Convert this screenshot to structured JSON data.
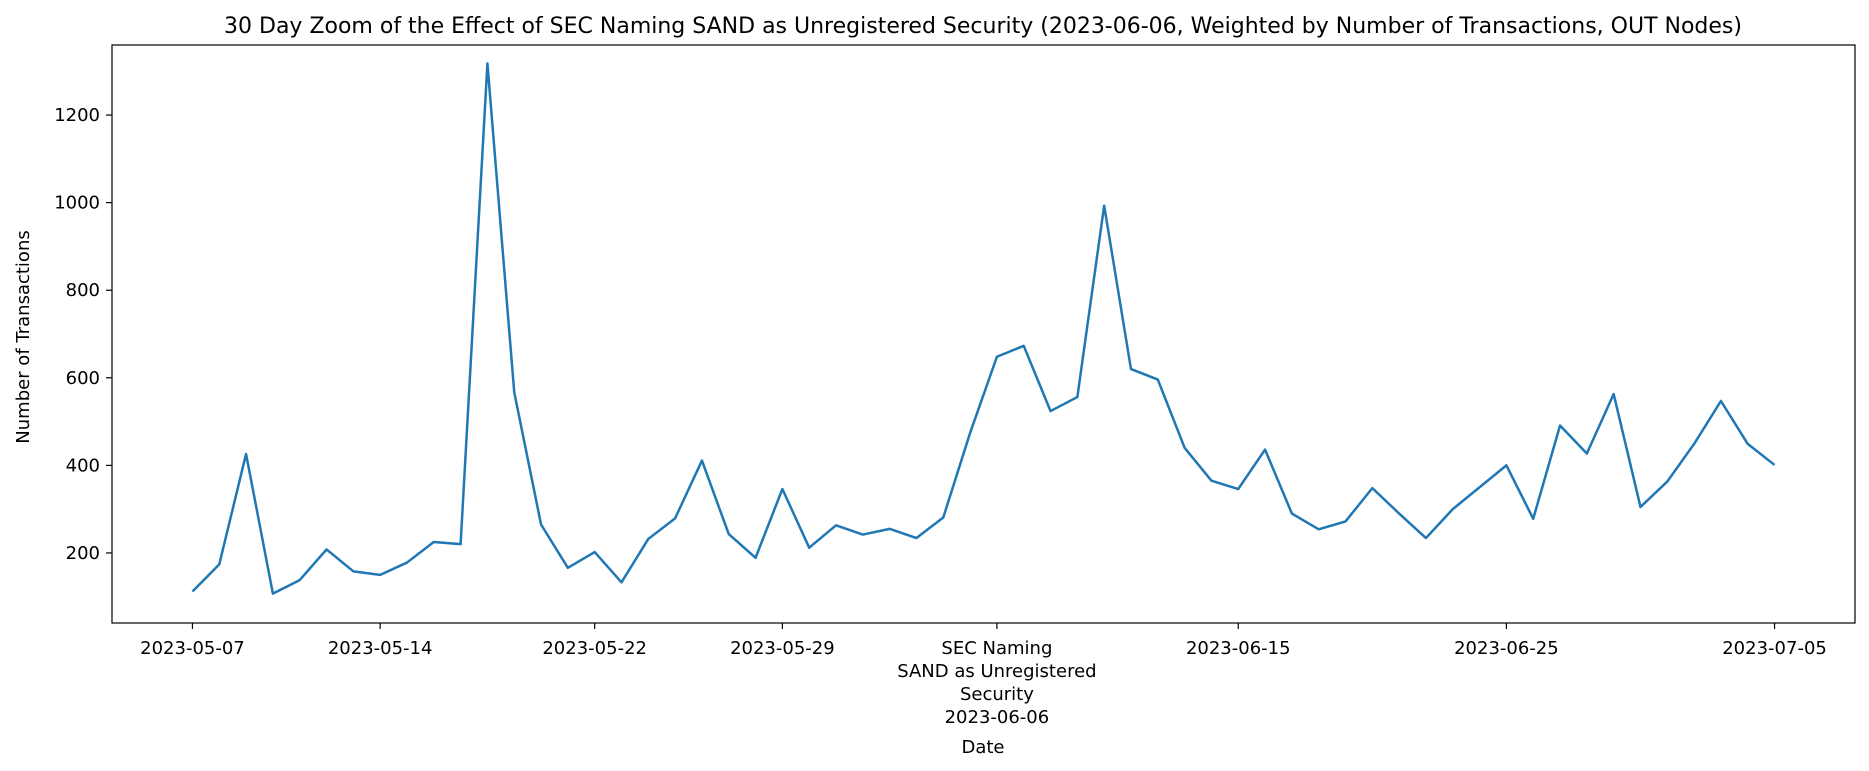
{
  "chart_data": {
    "type": "line",
    "title": "30 Day Zoom of the Effect of SEC Naming SAND as Unregistered Security (2023-06-06, Weighted by Number of Transactions, OUT Nodes)",
    "xlabel": "Date",
    "ylabel": "Number of Transactions",
    "grid": false,
    "legend": "none",
    "line_color": "#1f77b4",
    "xlim": [
      "2023-05-04",
      "2023-07-08"
    ],
    "ylim": [
      40,
      1360
    ],
    "y_ticks": [
      200,
      400,
      600,
      800,
      1000,
      1200
    ],
    "x_ticks": [
      {
        "date": "2023-05-07",
        "lines": [
          "2023-05-07"
        ]
      },
      {
        "date": "2023-05-14",
        "lines": [
          "2023-05-14"
        ]
      },
      {
        "date": "2023-05-22",
        "lines": [
          "2023-05-22"
        ]
      },
      {
        "date": "2023-05-29",
        "lines": [
          "2023-05-29"
        ]
      },
      {
        "date": "2023-06-06",
        "lines": [
          "SEC Naming",
          "SAND as Unregistered",
          "Security",
          "2023-06-06"
        ]
      },
      {
        "date": "2023-06-15",
        "lines": [
          "2023-06-15"
        ]
      },
      {
        "date": "2023-06-25",
        "lines": [
          "2023-06-25"
        ]
      },
      {
        "date": "2023-07-05",
        "lines": [
          "2023-07-05"
        ]
      }
    ],
    "series": [
      {
        "x": [
          "2023-05-07",
          "2023-05-08",
          "2023-05-09",
          "2023-05-10",
          "2023-05-11",
          "2023-05-12",
          "2023-05-13",
          "2023-05-14",
          "2023-05-15",
          "2023-05-16",
          "2023-05-17",
          "2023-05-18",
          "2023-05-19",
          "2023-05-20",
          "2023-05-21",
          "2023-05-22",
          "2023-05-23",
          "2023-05-24",
          "2023-05-25",
          "2023-05-26",
          "2023-05-27",
          "2023-05-28",
          "2023-05-29",
          "2023-05-30",
          "2023-05-31",
          "2023-06-01",
          "2023-06-02",
          "2023-06-03",
          "2023-06-04",
          "2023-06-05",
          "2023-06-06",
          "2023-06-07",
          "2023-06-08",
          "2023-06-09",
          "2023-06-10",
          "2023-06-11",
          "2023-06-12",
          "2023-06-13",
          "2023-06-14",
          "2023-06-15",
          "2023-06-16",
          "2023-06-17",
          "2023-06-18",
          "2023-06-19",
          "2023-06-20",
          "2023-06-21",
          "2023-06-22",
          "2023-06-23",
          "2023-06-24",
          "2023-06-25",
          "2023-06-26",
          "2023-06-27",
          "2023-06-28",
          "2023-06-29",
          "2023-06-30",
          "2023-07-01",
          "2023-07-02",
          "2023-07-03",
          "2023-07-04",
          "2023-07-05"
        ],
        "values": [
          112,
          174,
          426,
          107,
          138,
          208,
          158,
          150,
          178,
          225,
          220,
          1318,
          567,
          265,
          166,
          202,
          133,
          232,
          279,
          411,
          243,
          189,
          346,
          212,
          263,
          242,
          255,
          234,
          281,
          474,
          648,
          673,
          524,
          556,
          993,
          620,
          596,
          440,
          365,
          346,
          436,
          290,
          254,
          272,
          348,
          290,
          234,
          300,
          350,
          400,
          278,
          491,
          427,
          563,
          305,
          363,
          449,
          547,
          449,
          401
        ]
      }
    ]
  }
}
